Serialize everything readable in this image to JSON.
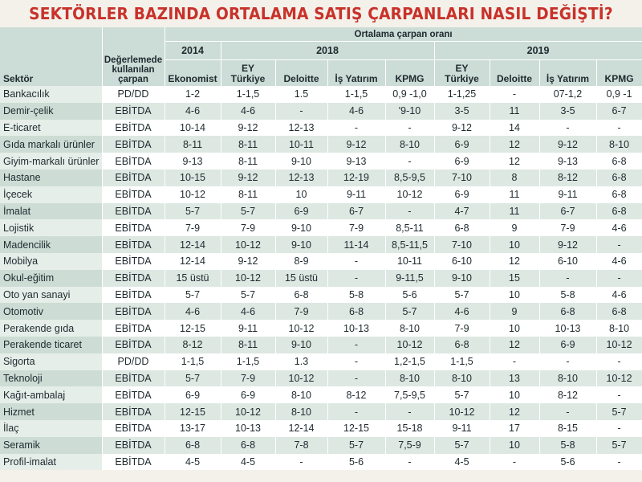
{
  "title": "SEKTÖRLER BAZINDA ORTALAMA SATIŞ ÇARPANLARI NASIL DEĞİŞTİ?",
  "headers": {
    "ratio_group": "Ortalama çarpan oranı",
    "method_line1": "Değerlemede",
    "method_line2": "kullanılan",
    "method_line3": "çarpan",
    "sector": "Sektör",
    "year_2014": "2014",
    "year_2018": "2018",
    "year_2019": "2019",
    "ekonomist": "Ekonomist",
    "ey_line1": "EY",
    "ey_line2": "Türkiye",
    "deloitte": "Deloitte",
    "is_yatirim": "İş Yatırım",
    "kpmg": "KPMG",
    "ey19_line1": "EY",
    "ey19_line2": "Türkiye",
    "deloitte19": "Deloitte",
    "is_yatirim19": "İş Yatırım",
    "kpmg19": "KPMG"
  },
  "rows": [
    [
      "Bankacılık",
      "PD/DD",
      "1-2",
      "1-1,5",
      "1.5",
      "1-1,5",
      "0,9 -1,0",
      "1-1,25",
      "-",
      "07-1,2",
      "0,9 -1"
    ],
    [
      "Demir-çelik",
      "EBİTDA",
      "4-6",
      "4-6",
      "-",
      "4-6",
      "'9-10",
      "3-5",
      "11",
      "3-5",
      "6-7"
    ],
    [
      "E-ticaret",
      "EBİTDA",
      "10-14",
      "9-12",
      "12-13",
      "-",
      "-",
      "9-12",
      "14",
      "-",
      "-"
    ],
    [
      "Gıda markalı ürünler",
      "EBİTDA",
      "8-11",
      "8-11",
      "10-11",
      "9-12",
      "8-10",
      "6-9",
      "12",
      "9-12",
      "8-10"
    ],
    [
      "Giyim-markalı ürünler",
      "EBİTDA",
      "9-13",
      "8-11",
      "9-10",
      "9-13",
      "-",
      "6-9",
      "12",
      "9-13",
      "6-8"
    ],
    [
      "Hastane",
      "EBİTDA",
      "10-15",
      "9-12",
      "12-13",
      "12-19",
      "8,5-9,5",
      "7-10",
      "8",
      "8-12",
      "6-8"
    ],
    [
      "İçecek",
      "EBİTDA",
      "10-12",
      "8-11",
      "10",
      "9-11",
      "10-12",
      "6-9",
      "11",
      "9-11",
      "6-8"
    ],
    [
      "İmalat",
      "EBİTDA",
      "5-7",
      "5-7",
      "6-9",
      "6-7",
      "-",
      "4-7",
      "11",
      "6-7",
      "6-8"
    ],
    [
      "Lojistik",
      "EBİTDA",
      "7-9",
      "7-9",
      "9-10",
      "7-9",
      "8,5-11",
      "6-8",
      "9",
      "7-9",
      "4-6"
    ],
    [
      "Madencilik",
      "EBİTDA",
      "12-14",
      "10-12",
      "9-10",
      "11-14",
      "8,5-11,5",
      "7-10",
      "10",
      "9-12",
      "-"
    ],
    [
      "Mobilya",
      "EBİTDA",
      "12-14",
      "9-12",
      "8-9",
      "-",
      "10-11",
      "6-10",
      "12",
      "6-10",
      "4-6"
    ],
    [
      "Okul-eğitim",
      "EBİTDA",
      "15 üstü",
      "10-12",
      "15 üstü",
      "-",
      "9-11,5",
      "9-10",
      "15",
      "-",
      "-"
    ],
    [
      "Oto yan sanayi",
      "EBİTDA",
      "5-7",
      "5-7",
      "6-8",
      "5-8",
      "5-6",
      "5-7",
      "10",
      "5-8",
      "4-6"
    ],
    [
      "Otomotiv",
      "EBİTDA",
      "4-6",
      "4-6",
      "7-9",
      "6-8",
      "5-7",
      "4-6",
      "9",
      "6-8",
      "6-8"
    ],
    [
      "Perakende gıda",
      "EBİTDA",
      "12-15",
      "9-11",
      "10-12",
      "10-13",
      "8-10",
      "7-9",
      "10",
      "10-13",
      "8-10"
    ],
    [
      "Perakende ticaret",
      "EBİTDA",
      "8-12",
      "8-11",
      "9-10",
      "-",
      "10-12",
      "6-8",
      "12",
      "6-9",
      "10-12"
    ],
    [
      "Sigorta",
      "PD/DD",
      "1-1,5",
      "1-1,5",
      "1.3",
      "-",
      "1,2-1,5",
      "1-1,5",
      "-",
      "-",
      "-"
    ],
    [
      "Teknoloji",
      "EBİTDA",
      "5-7",
      "7-9",
      "10-12",
      "-",
      "8-10",
      "8-10",
      "13",
      "8-10",
      "10-12"
    ],
    [
      "Kağıt-ambalaj",
      "EBİTDA",
      "6-9",
      "6-9",
      "8-10",
      "8-12",
      "7,5-9,5",
      "5-7",
      "10",
      "8-12",
      "-"
    ],
    [
      "Hizmet",
      "EBİTDA",
      "12-15",
      "10-12",
      "8-10",
      "-",
      "-",
      "10-12",
      "12",
      "-",
      "5-7"
    ],
    [
      "İlaç",
      "EBİTDA",
      "13-17",
      "10-13",
      "12-14",
      "12-15",
      "15-18",
      "9-11",
      "17",
      "8-15",
      "-"
    ],
    [
      "Seramik",
      "EBİTDA",
      "6-8",
      "6-8",
      "7-8",
      "5-7",
      "7,5-9",
      "5-7",
      "10",
      "5-8",
      "5-7"
    ],
    [
      "Profil-imalat",
      "EBİTDA",
      "4-5",
      "4-5",
      "-",
      "5-6",
      "-",
      "4-5",
      "-",
      "5-6",
      "-"
    ]
  ]
}
